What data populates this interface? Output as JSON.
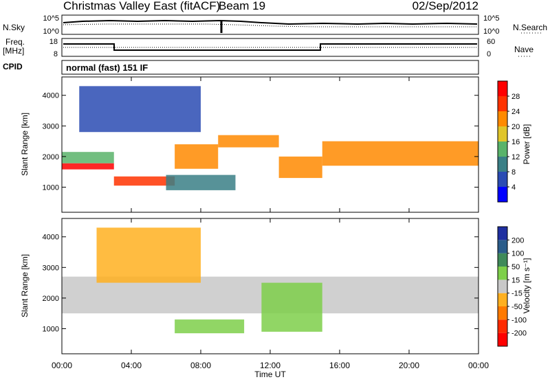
{
  "header": {
    "title": "Christmas Valley East (fitACF)",
    "beam": "Beam 19",
    "date": "02/Sep/2012"
  },
  "noise_panel": {
    "left_label": "N.Sky",
    "left_ticks": [
      "10^5",
      "10^0"
    ],
    "right_label": "N.Search",
    "right_ticks": [
      "10^5",
      "10^0"
    ]
  },
  "freq_panel": {
    "left_label_1": "Freq.",
    "left_label_2": "[MHz]",
    "left_ticks": [
      "18",
      "8"
    ],
    "right_label": "Nave",
    "right_ticks": [
      "60",
      "0"
    ]
  },
  "cpid": {
    "label": "CPID",
    "mode": "normal (fast) 151 IF"
  },
  "colors": {
    "power_scale": [
      "#0000ff",
      "#2a4bb3",
      "#3a7f86",
      "#59b36a",
      "#e0c52a",
      "#ff8a00",
      "#ff3300",
      "#ff0000"
    ],
    "velocity_scale": [
      "#1f2fa0",
      "#2a5c8a",
      "#3f8a5a",
      "#7ecf4a",
      "#c8c8c8",
      "#ffb020",
      "#ff7a00",
      "#ff2a00",
      "#ff0000"
    ]
  },
  "chart_data": [
    {
      "type": "heatmap",
      "name": "power",
      "xlabel": "",
      "ylabel": "Slant Range [km]",
      "xlim": [
        "00:00",
        "24:00"
      ],
      "ylim": [
        180,
        4600
      ],
      "y_ticks": [
        "1000",
        "2000",
        "3000",
        "4000"
      ],
      "colorbar": {
        "label": "Power [dB]",
        "ticks": [
          "4",
          "8",
          "12",
          "16",
          "20",
          "24",
          "28"
        ],
        "range": [
          0,
          32
        ]
      },
      "bands": [
        {
          "x": [
            0.0,
            3.0
          ],
          "y": [
            1580,
            1780
          ],
          "level": 30
        },
        {
          "x": [
            0.0,
            3.0
          ],
          "y": [
            1780,
            2150
          ],
          "level": 13
        },
        {
          "x": [
            3.0,
            6.5
          ],
          "y": [
            1050,
            1350
          ],
          "level": 27
        },
        {
          "x": [
            6.5,
            9.0
          ],
          "y": [
            1600,
            2400
          ],
          "level": 22
        },
        {
          "x": [
            9.0,
            12.5
          ],
          "y": [
            2300,
            2700
          ],
          "level": 22
        },
        {
          "x": [
            12.5,
            15.0
          ],
          "y": [
            1300,
            2000
          ],
          "level": 20
        },
        {
          "x": [
            15.0,
            24.0
          ],
          "y": [
            1700,
            2500
          ],
          "level": 22
        },
        {
          "x": [
            6.0,
            10.0
          ],
          "y": [
            900,
            1400
          ],
          "level": 10
        },
        {
          "x": [
            1.0,
            8.0
          ],
          "y": [
            2800,
            4300
          ],
          "level": 7
        }
      ]
    },
    {
      "type": "heatmap",
      "name": "velocity",
      "xlabel": "Time UT",
      "ylabel": "Slant Range [km]",
      "xlim": [
        "00:00",
        "24:00"
      ],
      "ylim": [
        180,
        4600
      ],
      "x_ticks": [
        "00:00",
        "04:00",
        "08:00",
        "12:00",
        "16:00",
        "20:00",
        "00:00"
      ],
      "y_ticks": [
        "1000",
        "2000",
        "3000",
        "4000"
      ],
      "colorbar": {
        "label": "Velocity [m s⁻¹]",
        "ticks": [
          "200",
          "100",
          "50",
          "15",
          "-15",
          "-50",
          "-100",
          "-200"
        ],
        "range": [
          -250,
          250
        ]
      },
      "bands": [
        {
          "x": [
            0.0,
            24.0
          ],
          "y": [
            1500,
            2700
          ],
          "level": 0
        },
        {
          "x": [
            6.5,
            10.5
          ],
          "y": [
            850,
            1300
          ],
          "level": 55
        },
        {
          "x": [
            2.0,
            8.0
          ],
          "y": [
            2500,
            4300
          ],
          "level": -40
        },
        {
          "x": [
            11.5,
            15.0
          ],
          "y": [
            900,
            2500
          ],
          "level": 30
        }
      ]
    }
  ]
}
